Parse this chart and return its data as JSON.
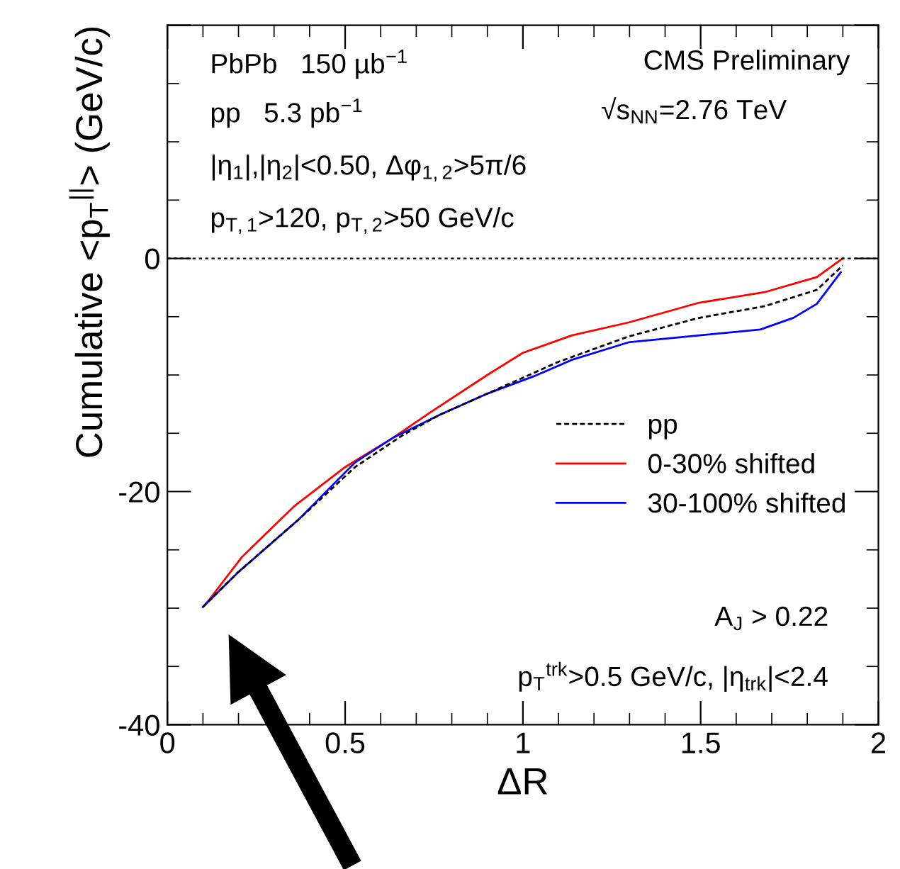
{
  "chart_data": {
    "type": "line",
    "xlabel": "ΔR",
    "ylabel": "Cumulative <p$_{T}$$^{||}$> (GeV/c)",
    "xlim": [
      0,
      2
    ],
    "xticks": [
      0,
      0.5,
      1,
      1.5,
      2
    ],
    "ylim": [
      -40,
      20
    ],
    "yticks": [
      -40,
      -20,
      0,
      {
        "value": 20,
        "label": null
      }
    ],
    "grid": false,
    "legend": "right",
    "marker": "none",
    "ref_lines": [
      {
        "axis": "y",
        "value": 0,
        "label": null,
        "color": "#000000",
        "line_style": "dotted"
      }
    ],
    "series": [
      {
        "name": "pp",
        "color": "#000000",
        "line_style": "dashed",
        "x": [
          0.1,
          0.196,
          0.369,
          0.528,
          0.66,
          0.767,
          0.9,
          1.098,
          1.297,
          1.496,
          1.68,
          1.827,
          1.9
        ],
        "values": [
          -29.9,
          -27.0,
          -22.4,
          -17.9,
          -15.2,
          -13.4,
          -11.6,
          -8.9,
          -6.7,
          -5.1,
          -4.1,
          -2.7,
          -0.6
        ]
      },
      {
        "name": "0-30% shifted",
        "color": "#ff0000",
        "line_style": "solid",
        "x": [
          0.1,
          0.117,
          0.21,
          0.355,
          0.5,
          0.634,
          0.74,
          0.9,
          1.0,
          1.138,
          1.297,
          1.496,
          1.68,
          1.827,
          1.9
        ],
        "values": [
          -29.9,
          -29.3,
          -25.6,
          -21.3,
          -17.9,
          -15.4,
          -13.2,
          -10.0,
          -8.1,
          -6.6,
          -5.5,
          -3.8,
          -2.9,
          -1.6,
          0
        ]
      },
      {
        "name": "30-100% shifted",
        "color": "#0000ff",
        "line_style": "solid",
        "x": [
          0.1,
          0.196,
          0.369,
          0.528,
          0.634,
          0.767,
          0.9,
          1.032,
          1.138,
          1.297,
          1.43,
          1.668,
          1.761,
          1.827,
          1.894
        ],
        "values": [
          -29.9,
          -27.0,
          -22.4,
          -17.5,
          -15.4,
          -13.4,
          -11.6,
          -10.1,
          -8.7,
          -7.2,
          -6.8,
          -6.1,
          -5.1,
          -3.9,
          -1.2
        ]
      }
    ],
    "annotations": [
      "PbPb   150 µb$^{−1}$",
      "pp   5.3 pb$^{−1}$",
      "|η$_{1}$|,|η$_{2}$|<0.50, Δφ$_{1,2}$>5π/6",
      "p$_{T,1}$>120, p$_{T,2}$>50 GeV/c",
      "CMS Preliminary",
      "√s$_{NN}$=2.76 TeV",
      "A$_{J}$ > 0.22",
      "p$_{T}$$^{trk}$>0.5 GeV/c, |η$_{trk}$|<2.4"
    ]
  }
}
